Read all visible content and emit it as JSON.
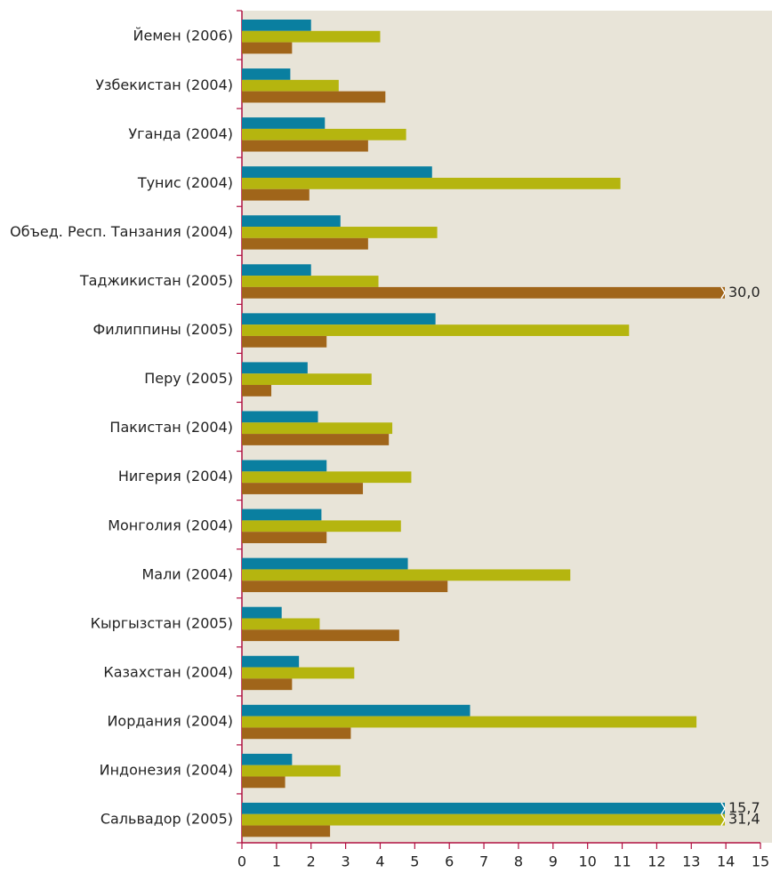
{
  "chart_data": {
    "type": "hbar",
    "categories": [
      "Йемен (2006)",
      "Узбекистан (2004)",
      "Уганда (2004)",
      "Тунис (2004)",
      "Объед. Респ. Танзания (2004)",
      "Таджикистан (2005)",
      "Филиппины (2005)",
      "Перу (2005)",
      "Пакистан (2004)",
      "Нигерия (2004)",
      "Монголия (2004)",
      "Мали (2004)",
      "Кыргызстан (2005)",
      "Казахстан (2004)",
      "Иордания (2004)",
      "Индонезия (2004)",
      "Сальвадор (2005)"
    ],
    "series": [
      {
        "color": "#0a7fa0",
        "values": [
          2.0,
          1.4,
          2.4,
          5.5,
          2.85,
          2.0,
          5.6,
          1.9,
          2.2,
          2.45,
          2.3,
          4.8,
          1.15,
          1.65,
          6.6,
          1.45,
          15.7
        ],
        "value_labels": [
          null,
          null,
          null,
          null,
          null,
          null,
          null,
          null,
          null,
          null,
          null,
          null,
          null,
          null,
          null,
          null,
          "15,7"
        ]
      },
      {
        "color": "#b5b50f",
        "values": [
          4.0,
          2.8,
          4.75,
          10.95,
          5.65,
          3.95,
          11.2,
          3.75,
          4.35,
          4.9,
          4.6,
          9.5,
          2.25,
          3.25,
          13.15,
          2.85,
          31.4
        ],
        "value_labels": [
          null,
          null,
          null,
          null,
          null,
          null,
          null,
          null,
          null,
          null,
          null,
          null,
          null,
          null,
          null,
          null,
          "31,4"
        ]
      },
      {
        "color": "#a0651a",
        "values": [
          1.45,
          4.15,
          3.65,
          1.95,
          3.65,
          30.0,
          2.45,
          0.85,
          4.25,
          3.5,
          2.45,
          5.95,
          4.55,
          1.45,
          3.15,
          1.25,
          2.55
        ],
        "value_labels": [
          null,
          null,
          null,
          null,
          null,
          "30,0",
          null,
          null,
          null,
          null,
          null,
          null,
          null,
          null,
          null,
          null,
          null
        ]
      }
    ],
    "xlim": [
      0,
      15
    ],
    "xticks": [
      0,
      1,
      2,
      3,
      4,
      5,
      6,
      7,
      8,
      9,
      10,
      11,
      12,
      13,
      14,
      15
    ],
    "grid": false
  }
}
